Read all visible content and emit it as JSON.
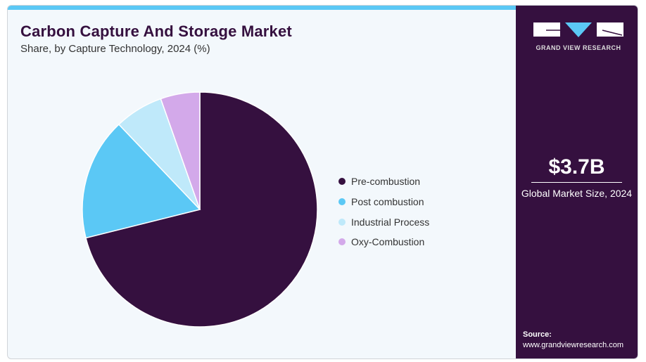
{
  "title": "Carbon Capture And Storage Market",
  "subtitle": "Share, by Capture Technology, 2024 (%)",
  "brand": {
    "name": "GRAND VIEW RESEARCH"
  },
  "market": {
    "value": "$3.7B",
    "caption": "Global Market Size, 2024"
  },
  "source": {
    "label": "Source:",
    "url": "www.grandviewresearch.com"
  },
  "chart_data": {
    "type": "pie",
    "title": "Carbon Capture And Storage Market",
    "categories": [
      "Pre-combustion",
      "Post combustion",
      "Industrial Process",
      "Oxy-Combustion"
    ],
    "values": [
      71.1,
      16.8,
      6.7,
      5.4
    ],
    "colors": [
      "#35103f",
      "#5bc8f5",
      "#bfe9fa",
      "#d3a9ea"
    ],
    "legend_position": "right"
  }
}
